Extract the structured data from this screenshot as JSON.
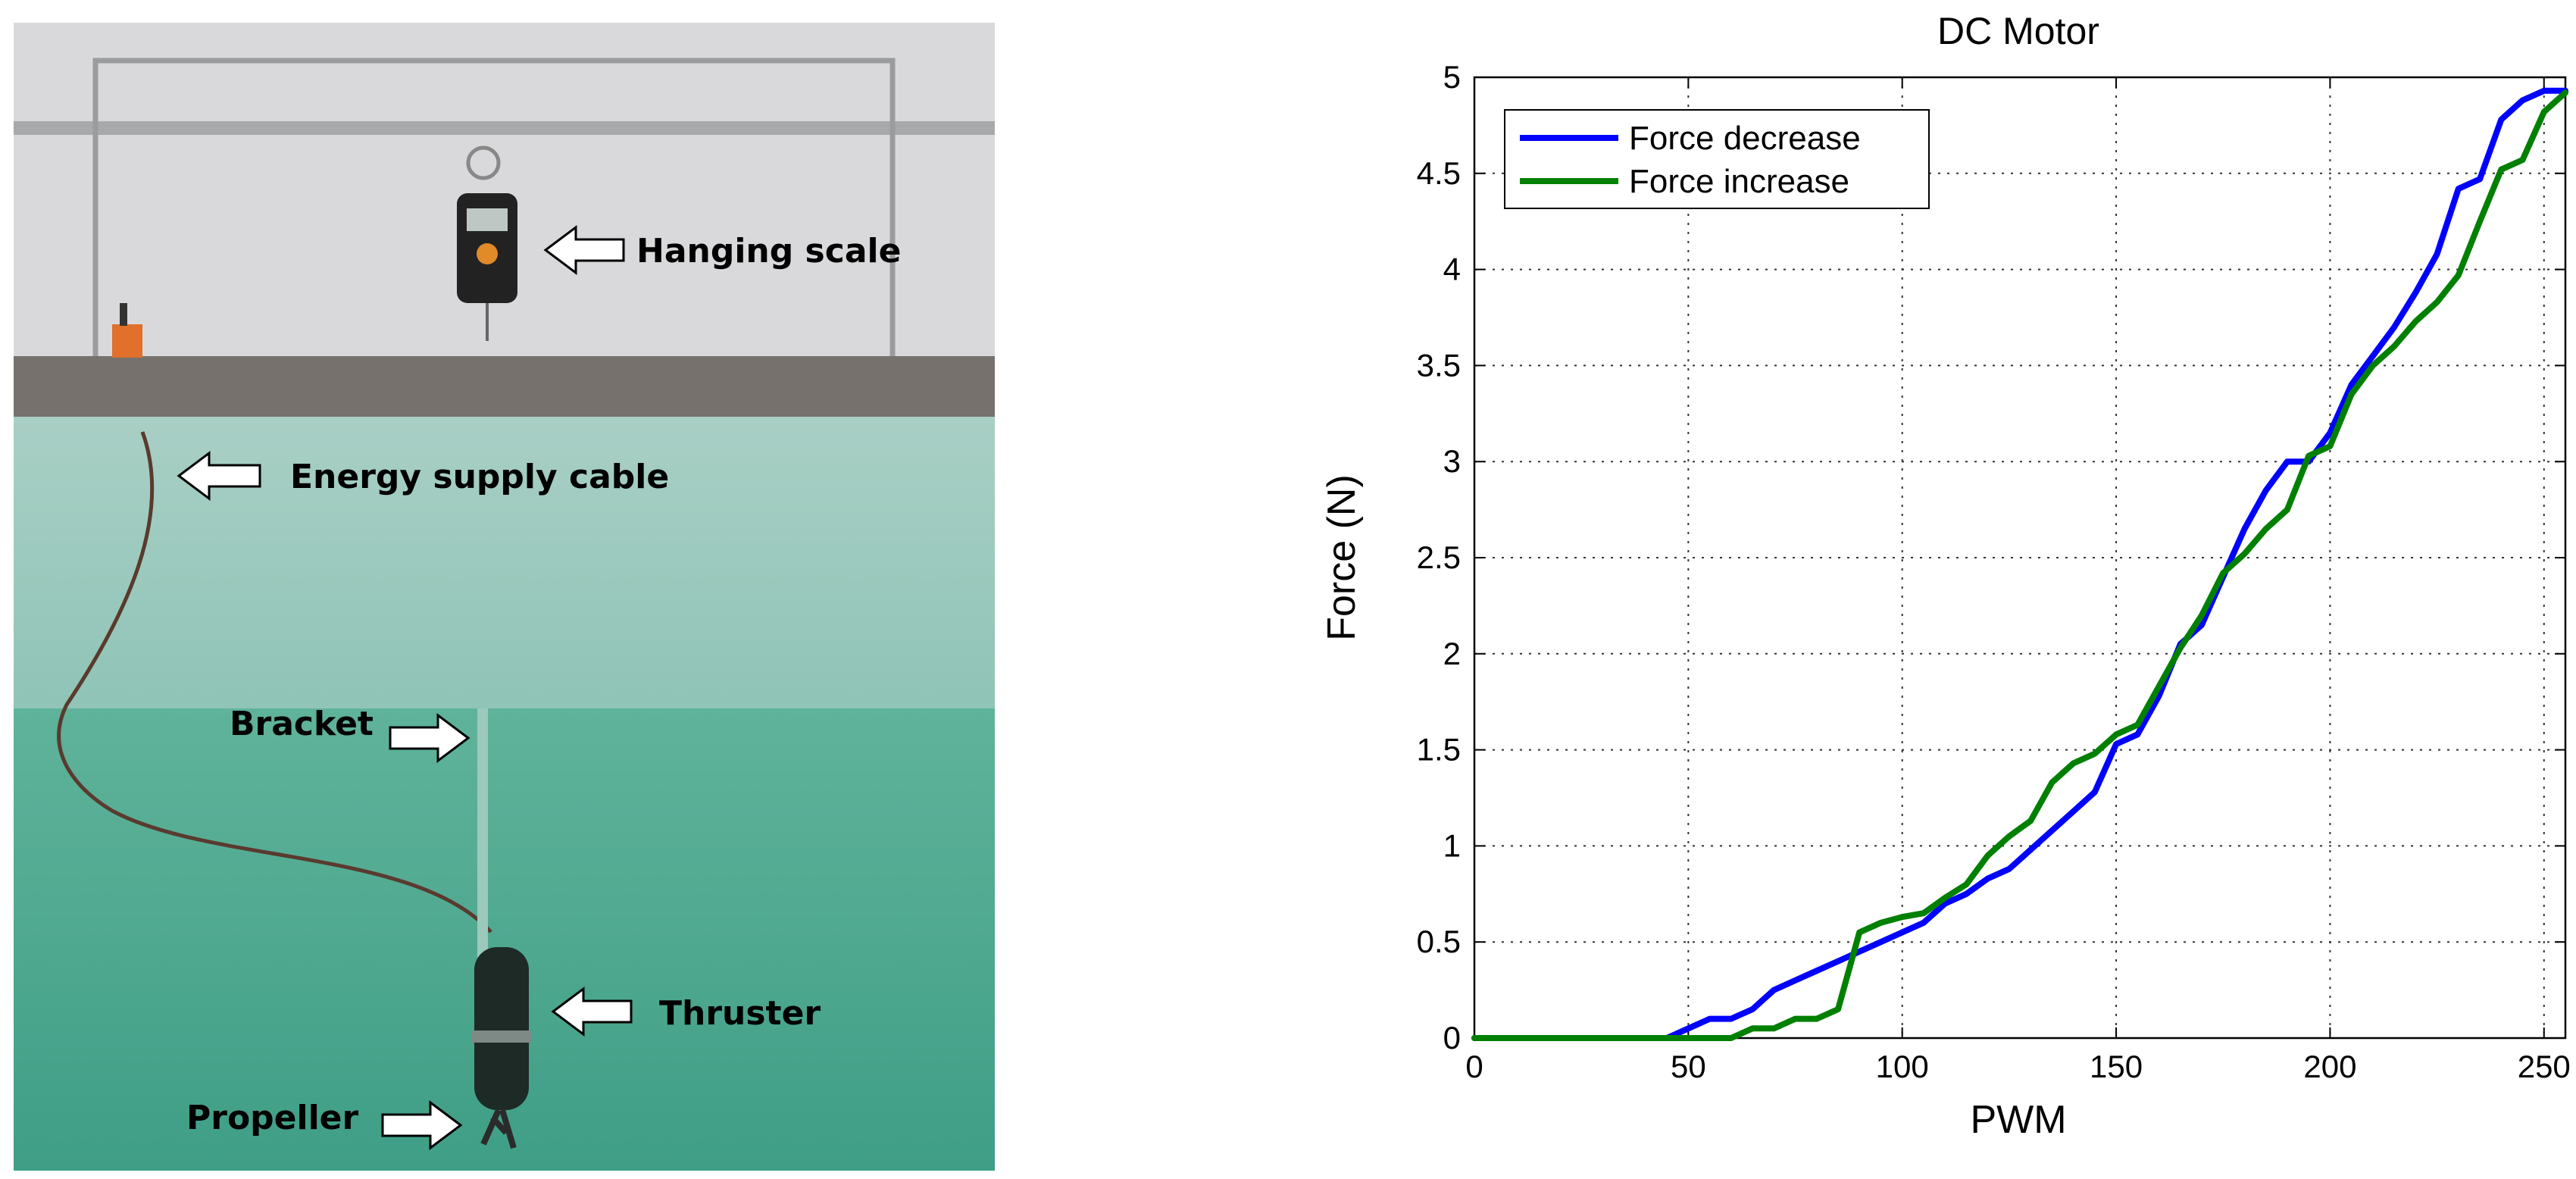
{
  "photo": {
    "labels": {
      "hanging_scale": "Hanging scale",
      "energy_supply_cable": "Energy supply cable",
      "bracket": "Bracket",
      "thruster": "Thruster",
      "propeller": "Propeller"
    }
  },
  "chart_data": {
    "type": "line",
    "title": "DC Motor",
    "xlabel": "PWM",
    "ylabel": "Force (N)",
    "xlim": [
      0,
      255
    ],
    "ylim": [
      0,
      5
    ],
    "xticks": [
      0,
      50,
      100,
      150,
      200,
      250
    ],
    "yticks": [
      0,
      0.5,
      1,
      1.5,
      2,
      2.5,
      3,
      3.5,
      4,
      4.5,
      5
    ],
    "grid": true,
    "legend_position": "top-left",
    "series": [
      {
        "name": "Force decrease",
        "color": "#0000ff",
        "x": [
          0,
          45,
          50,
          55,
          60,
          65,
          70,
          75,
          80,
          85,
          90,
          95,
          100,
          105,
          110,
          115,
          120,
          125,
          130,
          135,
          140,
          145,
          150,
          155,
          160,
          165,
          170,
          175,
          180,
          185,
          190,
          195,
          200,
          205,
          210,
          215,
          220,
          225,
          230,
          235,
          240,
          245,
          250,
          255
        ],
        "y": [
          0,
          0,
          0.05,
          0.1,
          0.1,
          0.15,
          0.25,
          0.3,
          0.35,
          0.4,
          0.45,
          0.5,
          0.55,
          0.6,
          0.7,
          0.75,
          0.83,
          0.88,
          0.98,
          1.08,
          1.18,
          1.28,
          1.53,
          1.58,
          1.78,
          2.05,
          2.15,
          2.4,
          2.65,
          2.85,
          3.0,
          3.0,
          3.15,
          3.4,
          3.55,
          3.7,
          3.88,
          4.08,
          4.42,
          4.47,
          4.78,
          4.88,
          4.93,
          4.93
        ]
      },
      {
        "name": "Force increase",
        "color": "#008000",
        "x": [
          0,
          60,
          65,
          70,
          75,
          80,
          85,
          90,
          95,
          100,
          105,
          110,
          115,
          120,
          125,
          130,
          135,
          140,
          145,
          150,
          155,
          160,
          165,
          170,
          175,
          180,
          185,
          190,
          195,
          200,
          205,
          210,
          215,
          220,
          225,
          230,
          235,
          240,
          245,
          250,
          255
        ],
        "y": [
          0,
          0,
          0.05,
          0.05,
          0.1,
          0.1,
          0.15,
          0.55,
          0.6,
          0.63,
          0.65,
          0.73,
          0.8,
          0.95,
          1.05,
          1.13,
          1.33,
          1.43,
          1.48,
          1.58,
          1.63,
          1.83,
          2.03,
          2.2,
          2.42,
          2.52,
          2.65,
          2.75,
          3.03,
          3.08,
          3.35,
          3.5,
          3.6,
          3.73,
          3.83,
          3.97,
          4.25,
          4.52,
          4.57,
          4.82,
          4.92
        ]
      }
    ]
  }
}
